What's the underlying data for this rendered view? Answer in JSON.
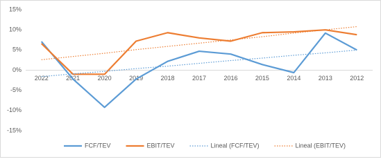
{
  "chart_data": {
    "type": "line",
    "categories": [
      "2022",
      "2021",
      "2020",
      "2019",
      "2018",
      "2017",
      "2016",
      "2015",
      "2014",
      "2013",
      "2012"
    ],
    "series": [
      {
        "name": "FCF/TEV",
        "color": "#5b9bd5",
        "style": "solid",
        "values": [
          7.1,
          -2.2,
          -9.2,
          -2.2,
          2.2,
          4.7,
          4.0,
          1.4,
          -0.6,
          9.2,
          5.0
        ]
      },
      {
        "name": "EBIT/TEV",
        "color": "#ed7d31",
        "style": "solid",
        "values": [
          6.6,
          -1.0,
          -1.0,
          7.2,
          9.3,
          8.0,
          7.2,
          9.3,
          9.5,
          10.0,
          8.8
        ]
      },
      {
        "name": "Lineal (FCF/TEV)",
        "color": "#5b9bd5",
        "style": "dotted",
        "values": [
          -1.6,
          -0.9,
          -0.3,
          0.4,
          1.0,
          1.7,
          2.4,
          3.0,
          3.7,
          4.3,
          5.0
        ]
      },
      {
        "name": "Lineal (EBIT/TEV)",
        "color": "#ed7d31",
        "style": "dotted",
        "values": [
          2.6,
          3.4,
          4.2,
          5.1,
          5.9,
          6.7,
          7.5,
          8.3,
          9.2,
          10.0,
          10.8
        ]
      }
    ],
    "ylim": [
      -15,
      15
    ],
    "yticks": [
      {
        "value": -15,
        "label": "-15%"
      },
      {
        "value": -10,
        "label": "-10%"
      },
      {
        "value": -5,
        "label": "-5%"
      },
      {
        "value": 0,
        "label": "0%"
      },
      {
        "value": 5,
        "label": "5%"
      },
      {
        "value": 10,
        "label": "10%"
      },
      {
        "value": 15,
        "label": "15%"
      }
    ],
    "grid": false,
    "legend": "bottom"
  }
}
